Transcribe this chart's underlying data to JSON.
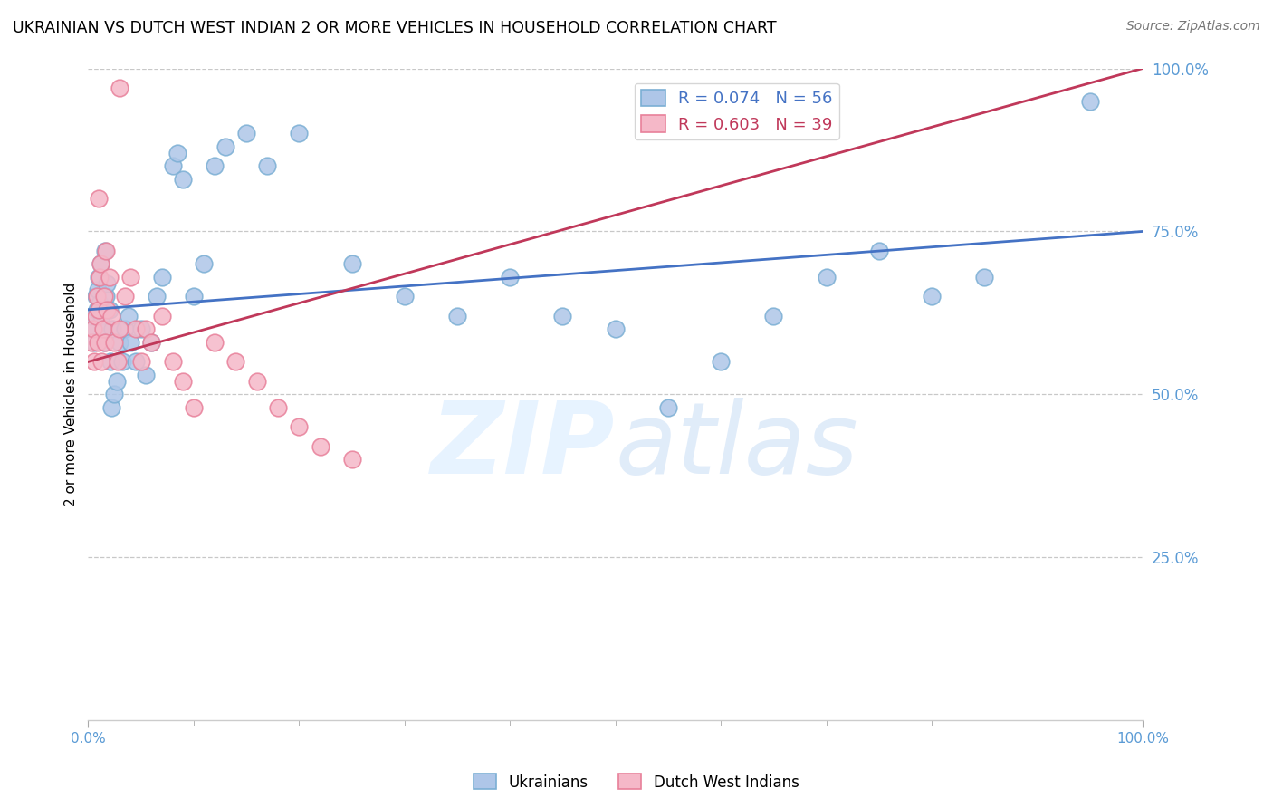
{
  "title": "UKRAINIAN VS DUTCH WEST INDIAN 2 OR MORE VEHICLES IN HOUSEHOLD CORRELATION CHART",
  "source": "Source: ZipAtlas.com",
  "ylabel": "2 or more Vehicles in Household",
  "legend1_label": "R = 0.074   N = 56",
  "legend2_label": "R = 0.603   N = 39",
  "trendline1_color": "#4472c4",
  "trendline2_color": "#c0385a",
  "scatter1_face": "#aec6e8",
  "scatter1_edge": "#7bafd4",
  "scatter2_face": "#f5b8c8",
  "scatter2_edge": "#e8809a",
  "legend_text1_color": "#4472c4",
  "legend_text2_color": "#c0385a",
  "right_tick_color": "#5b9bd5",
  "grid_color": "#c8c8c8",
  "background_color": "#ffffff",
  "xlim": [
    0,
    100
  ],
  "ylim": [
    0,
    100
  ],
  "yticks_right": [
    25,
    50,
    75,
    100
  ],
  "yticklabels_right": [
    "25.0%",
    "50.0%",
    "75.0%",
    "100.0%"
  ],
  "blue_points": [
    [
      0.3,
      62
    ],
    [
      0.5,
      60
    ],
    [
      0.6,
      58
    ],
    [
      0.7,
      65
    ],
    [
      0.8,
      63
    ],
    [
      0.9,
      66
    ],
    [
      1.0,
      68
    ],
    [
      1.1,
      64
    ],
    [
      1.2,
      70
    ],
    [
      1.3,
      62
    ],
    [
      1.4,
      60
    ],
    [
      1.5,
      58
    ],
    [
      1.6,
      72
    ],
    [
      1.7,
      65
    ],
    [
      1.8,
      67
    ],
    [
      2.0,
      63
    ],
    [
      2.1,
      55
    ],
    [
      2.2,
      48
    ],
    [
      2.3,
      60
    ],
    [
      2.5,
      50
    ],
    [
      2.7,
      52
    ],
    [
      3.0,
      58
    ],
    [
      3.2,
      55
    ],
    [
      3.5,
      60
    ],
    [
      3.8,
      62
    ],
    [
      4.0,
      58
    ],
    [
      4.5,
      55
    ],
    [
      5.0,
      60
    ],
    [
      5.5,
      53
    ],
    [
      6.0,
      58
    ],
    [
      6.5,
      65
    ],
    [
      7.0,
      68
    ],
    [
      8.0,
      85
    ],
    [
      8.5,
      87
    ],
    [
      9.0,
      83
    ],
    [
      10.0,
      65
    ],
    [
      11.0,
      70
    ],
    [
      12.0,
      85
    ],
    [
      13.0,
      88
    ],
    [
      15.0,
      90
    ],
    [
      17.0,
      85
    ],
    [
      20.0,
      90
    ],
    [
      25.0,
      70
    ],
    [
      30.0,
      65
    ],
    [
      35.0,
      62
    ],
    [
      40.0,
      68
    ],
    [
      45.0,
      62
    ],
    [
      50.0,
      60
    ],
    [
      55.0,
      48
    ],
    [
      60.0,
      55
    ],
    [
      65.0,
      62
    ],
    [
      70.0,
      68
    ],
    [
      75.0,
      72
    ],
    [
      80.0,
      65
    ],
    [
      85.0,
      68
    ],
    [
      95.0,
      95
    ]
  ],
  "pink_points": [
    [
      0.3,
      58
    ],
    [
      0.5,
      60
    ],
    [
      0.6,
      55
    ],
    [
      0.7,
      62
    ],
    [
      0.8,
      65
    ],
    [
      0.9,
      58
    ],
    [
      1.0,
      63
    ],
    [
      1.1,
      68
    ],
    [
      1.2,
      70
    ],
    [
      1.3,
      55
    ],
    [
      1.4,
      60
    ],
    [
      1.5,
      65
    ],
    [
      1.6,
      58
    ],
    [
      1.7,
      72
    ],
    [
      1.8,
      63
    ],
    [
      2.0,
      68
    ],
    [
      2.2,
      62
    ],
    [
      2.5,
      58
    ],
    [
      2.8,
      55
    ],
    [
      3.0,
      60
    ],
    [
      3.5,
      65
    ],
    [
      4.0,
      68
    ],
    [
      4.5,
      60
    ],
    [
      5.0,
      55
    ],
    [
      5.5,
      60
    ],
    [
      6.0,
      58
    ],
    [
      7.0,
      62
    ],
    [
      8.0,
      55
    ],
    [
      9.0,
      52
    ],
    [
      10.0,
      48
    ],
    [
      12.0,
      58
    ],
    [
      14.0,
      55
    ],
    [
      16.0,
      52
    ],
    [
      18.0,
      48
    ],
    [
      20.0,
      45
    ],
    [
      3.0,
      97
    ],
    [
      22.0,
      42
    ],
    [
      25.0,
      40
    ],
    [
      1.0,
      80
    ]
  ],
  "trendline1_x": [
    0,
    100
  ],
  "trendline1_y": [
    63,
    75
  ],
  "trendline2_x": [
    0,
    100
  ],
  "trendline2_y": [
    55,
    100
  ]
}
